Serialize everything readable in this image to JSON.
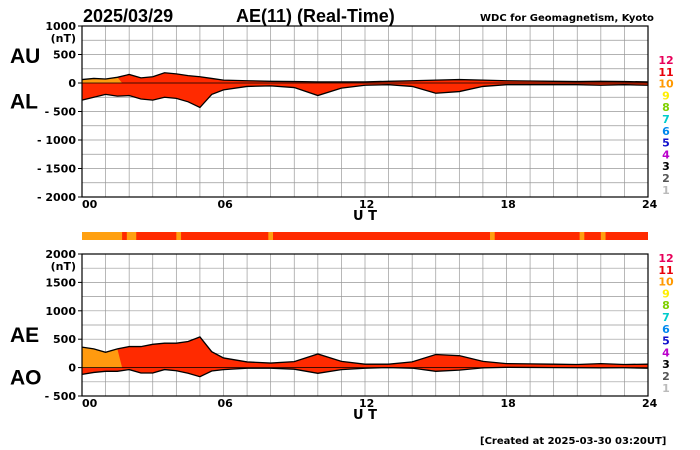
{
  "header": {
    "date": "2025/03/29",
    "title": "AE(11) (Real-Time)",
    "source": "WDC for Geomagnetism, Kyoto"
  },
  "footer": {
    "created": "[Created at 2025-03-30 03:20UT]"
  },
  "legend": {
    "labels": [
      "12",
      "11",
      "10",
      "9",
      "8",
      "7",
      "6",
      "5",
      "4",
      "3",
      "2",
      "1"
    ],
    "colors": [
      "#e8005a",
      "#e8000a",
      "#ff9900",
      "#ffee00",
      "#7fd000",
      "#00cccc",
      "#0088ee",
      "#1111cc",
      "#bb00cc",
      "#000000",
      "#555555",
      "#bbbbbb"
    ]
  },
  "colors": {
    "red": "#ff2a00",
    "orange": "#ffa010",
    "gray_band": "#ddaa00"
  },
  "chart_data": [
    {
      "type": "area",
      "name": "AU/AL",
      "xlabel": "U T",
      "unit": "(nT)",
      "xlim": [
        0,
        24
      ],
      "ylim": [
        -2000,
        1000
      ],
      "xticks": [
        0,
        6,
        12,
        18,
        24
      ],
      "xtick_labels": [
        "00",
        "06",
        "12",
        "18",
        "24"
      ],
      "yticks": [
        1000,
        500,
        0,
        -500,
        -1000,
        -1500,
        -2000
      ],
      "ytick_labels": [
        "1000",
        "500",
        "0",
        "- 500",
        "- 1000",
        "- 1500",
        "- 2000"
      ],
      "upper_label": "AU",
      "lower_label": "AL",
      "series": [
        {
          "name": "AU",
          "x": [
            0,
            0.5,
            1,
            1.5,
            2,
            2.5,
            3,
            3.5,
            4,
            4.5,
            5,
            5.5,
            6,
            7,
            8,
            9,
            10,
            11,
            12,
            13,
            14,
            15,
            16,
            17,
            18,
            19,
            20,
            21,
            22,
            23,
            24
          ],
          "values": [
            60,
            80,
            70,
            100,
            150,
            90,
            110,
            180,
            160,
            130,
            110,
            80,
            50,
            40,
            30,
            25,
            20,
            20,
            20,
            30,
            40,
            50,
            60,
            50,
            40,
            35,
            30,
            25,
            30,
            25,
            20
          ]
        },
        {
          "name": "AL",
          "x": [
            0,
            0.5,
            1,
            1.5,
            2,
            2.5,
            3,
            3.5,
            4,
            4.5,
            5,
            5.5,
            6,
            7,
            8,
            9,
            10,
            11,
            12,
            13,
            14,
            15,
            16,
            17,
            18,
            19,
            20,
            21,
            22,
            23,
            24
          ],
          "values": [
            -300,
            -250,
            -200,
            -230,
            -220,
            -280,
            -300,
            -250,
            -270,
            -330,
            -430,
            -200,
            -120,
            -60,
            -50,
            -80,
            -220,
            -90,
            -40,
            -30,
            -60,
            -180,
            -150,
            -60,
            -30,
            -30,
            -30,
            -30,
            -40,
            -30,
            -40
          ]
        }
      ]
    },
    {
      "type": "area",
      "name": "AE/AO",
      "xlabel": "U T",
      "unit": "(nT)",
      "xlim": [
        0,
        24
      ],
      "ylim": [
        -500,
        2000
      ],
      "xticks": [
        0,
        6,
        12,
        18,
        24
      ],
      "xtick_labels": [
        "00",
        "06",
        "12",
        "18",
        "24"
      ],
      "yticks": [
        2000,
        1500,
        1000,
        500,
        0,
        -500
      ],
      "ytick_labels": [
        "2000",
        "1500",
        "1000",
        "500",
        "0",
        "- 500"
      ],
      "upper_label": "AE",
      "lower_label": "AO",
      "series": [
        {
          "name": "AE",
          "x": [
            0,
            0.5,
            1,
            1.5,
            2,
            2.5,
            3,
            3.5,
            4,
            4.5,
            5,
            5.5,
            6,
            7,
            8,
            9,
            10,
            11,
            12,
            13,
            14,
            15,
            16,
            17,
            18,
            19,
            20,
            21,
            22,
            23,
            24
          ],
          "values": [
            360,
            330,
            270,
            330,
            370,
            370,
            410,
            430,
            430,
            460,
            540,
            280,
            170,
            100,
            80,
            105,
            240,
            110,
            60,
            60,
            100,
            230,
            210,
            110,
            70,
            65,
            60,
            55,
            70,
            55,
            60
          ]
        },
        {
          "name": "AO",
          "x": [
            0,
            0.5,
            1,
            1.5,
            2,
            2.5,
            3,
            3.5,
            4,
            4.5,
            5,
            5.5,
            6,
            7,
            8,
            9,
            10,
            11,
            12,
            13,
            14,
            15,
            16,
            17,
            18,
            19,
            20,
            21,
            22,
            23,
            24
          ],
          "values": [
            -120,
            -85,
            -65,
            -65,
            -35,
            -95,
            -95,
            -35,
            -55,
            -100,
            -160,
            -60,
            -35,
            -10,
            -10,
            -28,
            -100,
            -35,
            -10,
            0,
            -10,
            -65,
            -45,
            -5,
            5,
            3,
            0,
            -3,
            -5,
            -3,
            -10
          ]
        }
      ],
      "station_bar": {
        "xlim": [
          0,
          24
        ],
        "orange_segments": [
          [
            0,
            1.7
          ],
          [
            1.9,
            2.3
          ],
          [
            4.0,
            4.2
          ],
          [
            7.9,
            8.1
          ],
          [
            17.3,
            17.5
          ],
          [
            21.1,
            21.3
          ],
          [
            22.0,
            22.2
          ]
        ]
      }
    }
  ]
}
